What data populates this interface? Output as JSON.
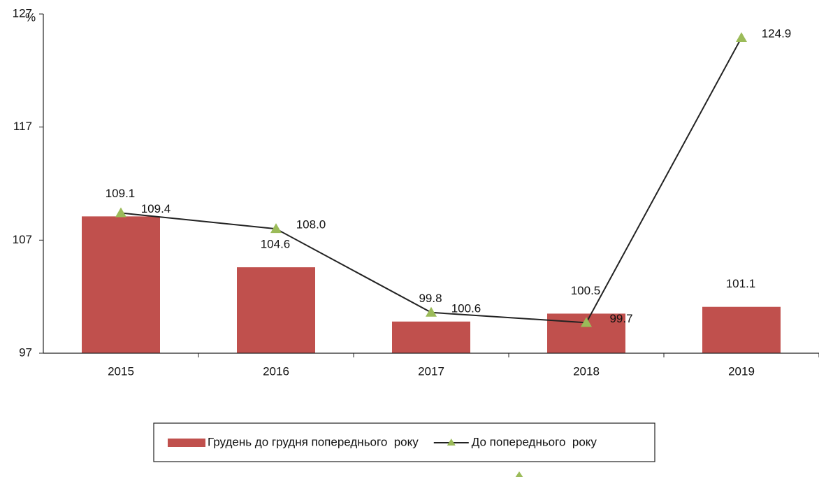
{
  "chart_data": {
    "type": "bar",
    "y_label": "%",
    "categories": [
      "2015",
      "2016",
      "2017",
      "2018",
      "2019"
    ],
    "series": [
      {
        "name": "Грудень до грудня попереднього  року",
        "type": "bar",
        "color": "#c0504d",
        "values": [
          109.1,
          104.6,
          99.8,
          100.5,
          101.1
        ]
      },
      {
        "name": "До попереднього  року",
        "type": "line",
        "color": "#9bbb59",
        "values": [
          109.4,
          108.0,
          100.6,
          99.7,
          124.9
        ],
        "value_labels": [
          "109.4",
          "108.0",
          "100.6",
          "99.7",
          "124.9"
        ]
      }
    ],
    "ylim": [
      97,
      127
    ],
    "yticks": [
      97,
      107,
      117,
      127
    ],
    "grid": false,
    "legend": "bottom"
  }
}
